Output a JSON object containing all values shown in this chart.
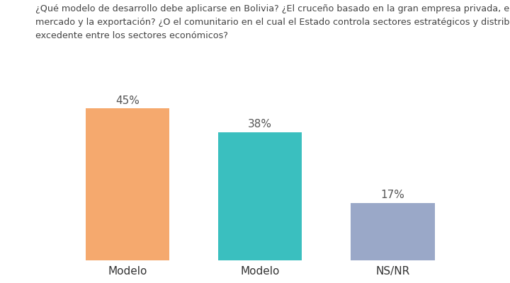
{
  "categories": [
    "Modelo",
    "Modelo",
    "NS/NR"
  ],
  "values": [
    45,
    38,
    17
  ],
  "bar_colors": [
    "#F5A96E",
    "#3ABFBF",
    "#9AA8C8"
  ],
  "labels": [
    "45%",
    "38%",
    "17%"
  ],
  "question_line1": "¿Qué modelo de desarrollo debe aplicarse en Bolivia? ¿El cruceño basado en la gran empresa privada, el libre",
  "question_line2": "mercado y la exportación? ¿O el comunitario en el cual el Estado controla sectores estratégicos y distribuye el",
  "question_line3": "excedente entre los sectores económicos?",
  "ylim": [
    0,
    52
  ],
  "background_color": "#ffffff",
  "bar_width": 0.38,
  "label_fontsize": 11,
  "question_fontsize": 9.2,
  "xtick_fontsize": 11,
  "x_positions": [
    0.5,
    1.1,
    1.7
  ]
}
